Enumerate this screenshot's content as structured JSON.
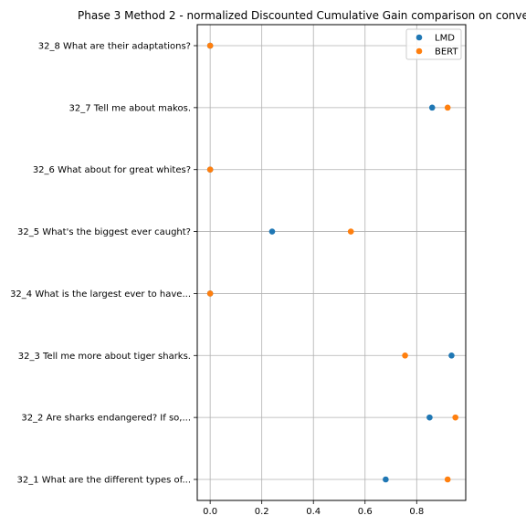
{
  "chart_data": {
    "type": "scatter",
    "title": "Phase 3 Method 2 - normalized Discounted Cumulative Gain comparison on conve",
    "xlabel": "",
    "ylabel": "",
    "xlim": [
      -0.05,
      0.99
    ],
    "x_ticks": [
      "0.0",
      "0.2",
      "0.4",
      "0.6",
      "0.8"
    ],
    "x_tick_values": [
      0.0,
      0.2,
      0.4,
      0.6,
      0.8
    ],
    "categories": [
      "32_1 What are the different types of...",
      "32_2 Are sharks endangered? If so,...",
      "32_3 Tell me more about tiger sharks.",
      "32_4 What is the largest ever to have...",
      "32_5 What's the biggest ever caught?",
      "32_6 What about for great whites?",
      "32_7 Tell me about makos.",
      "32_8 What are their adaptations?"
    ],
    "series": [
      {
        "name": "LMD",
        "color": "#1f77b4",
        "values": [
          0.68,
          0.85,
          0.935,
          0.0,
          0.24,
          0.0,
          0.86,
          0.0
        ]
      },
      {
        "name": "BERT",
        "color": "#ff7f0e",
        "values": [
          0.92,
          0.95,
          0.755,
          0.0,
          0.545,
          0.0,
          0.92,
          0.0
        ]
      }
    ],
    "grid": true,
    "legend_position": "top-right"
  }
}
